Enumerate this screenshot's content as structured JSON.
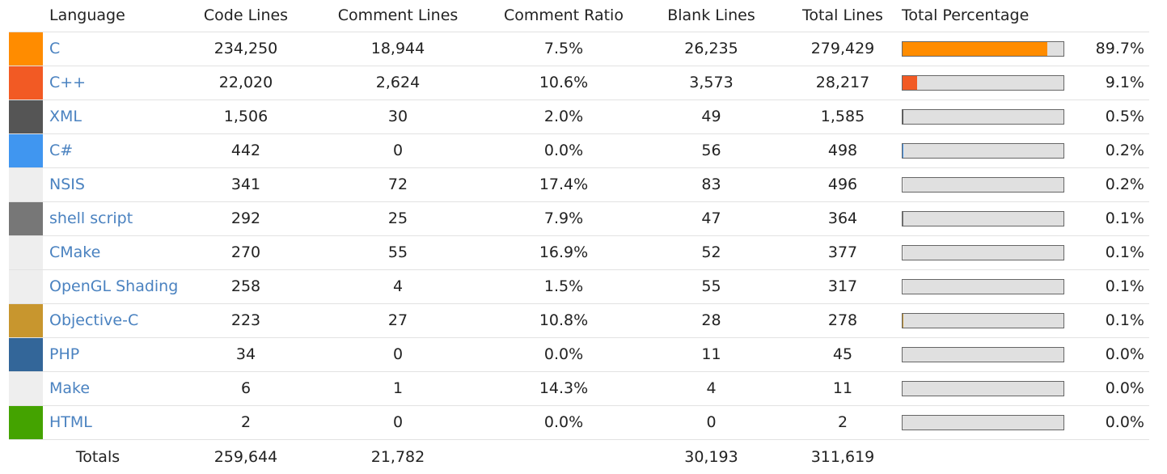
{
  "headers": {
    "language": "Language",
    "code_lines": "Code Lines",
    "comment_lines": "Comment Lines",
    "comment_ratio": "Comment Ratio",
    "blank_lines": "Blank Lines",
    "total_lines": "Total Lines",
    "total_percentage": "Total Percentage"
  },
  "rows": [
    {
      "color": "#ff8c00",
      "language": "C",
      "code": "234,250",
      "comment": "18,944",
      "ratio": "7.5%",
      "blank": "26,235",
      "total": "279,429",
      "pct": "89.7%",
      "pct_value": 89.7
    },
    {
      "color": "#f25a24",
      "language": "C++",
      "code": "22,020",
      "comment": "2,624",
      "ratio": "10.6%",
      "blank": "3,573",
      "total": "28,217",
      "pct": "9.1%",
      "pct_value": 9.1
    },
    {
      "color": "#555555",
      "language": "XML",
      "code": "1,506",
      "comment": "30",
      "ratio": "2.0%",
      "blank": "49",
      "total": "1,585",
      "pct": "0.5%",
      "pct_value": 0.5
    },
    {
      "color": "#4096f0",
      "language": "C#",
      "code": "442",
      "comment": "0",
      "ratio": "0.0%",
      "blank": "56",
      "total": "498",
      "pct": "0.2%",
      "pct_value": 0.2
    },
    {
      "color": "#eeeeee",
      "language": "NSIS",
      "code": "341",
      "comment": "72",
      "ratio": "17.4%",
      "blank": "83",
      "total": "496",
      "pct": "0.2%",
      "pct_value": 0.2
    },
    {
      "color": "#777777",
      "language": "shell script",
      "code": "292",
      "comment": "25",
      "ratio": "7.9%",
      "blank": "47",
      "total": "364",
      "pct": "0.1%",
      "pct_value": 0.1
    },
    {
      "color": "#eeeeee",
      "language": "CMake",
      "code": "270",
      "comment": "55",
      "ratio": "16.9%",
      "blank": "52",
      "total": "377",
      "pct": "0.1%",
      "pct_value": 0.1
    },
    {
      "color": "#eeeeee",
      "language": "OpenGL Shading",
      "code": "258",
      "comment": "4",
      "ratio": "1.5%",
      "blank": "55",
      "total": "317",
      "pct": "0.1%",
      "pct_value": 0.1
    },
    {
      "color": "#c8962e",
      "language": "Objective-C",
      "code": "223",
      "comment": "27",
      "ratio": "10.8%",
      "blank": "28",
      "total": "278",
      "pct": "0.1%",
      "pct_value": 0.1
    },
    {
      "color": "#336699",
      "language": "PHP",
      "code": "34",
      "comment": "0",
      "ratio": "0.0%",
      "blank": "11",
      "total": "45",
      "pct": "0.0%",
      "pct_value": 0.0
    },
    {
      "color": "#eeeeee",
      "language": "Make",
      "code": "6",
      "comment": "1",
      "ratio": "14.3%",
      "blank": "4",
      "total": "11",
      "pct": "0.0%",
      "pct_value": 0.0
    },
    {
      "color": "#44a300",
      "language": "HTML",
      "code": "2",
      "comment": "0",
      "ratio": "0.0%",
      "blank": "0",
      "total": "2",
      "pct": "0.0%",
      "pct_value": 0.0
    }
  ],
  "totals": {
    "label": "Totals",
    "code": "259,644",
    "comment": "21,782",
    "blank": "30,193",
    "total": "311,619"
  }
}
